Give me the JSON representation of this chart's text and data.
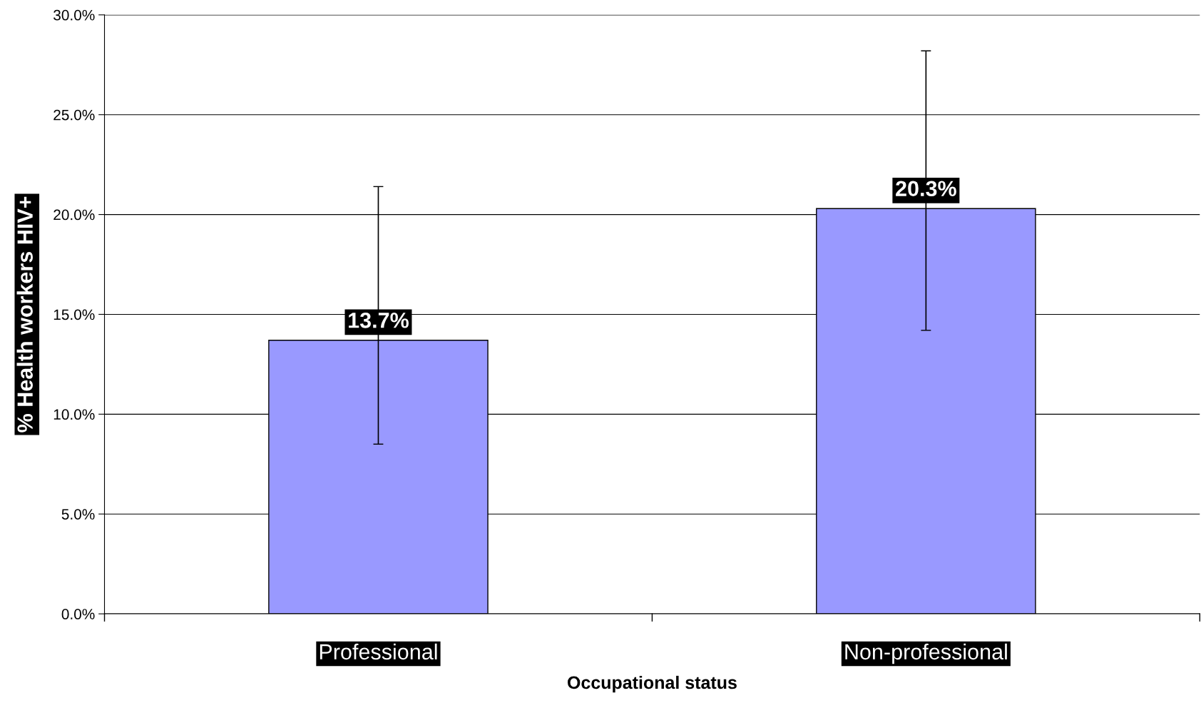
{
  "chart_data": {
    "type": "bar",
    "xlabel": "Occupational status",
    "ylabel": "% Health workers HIV+",
    "categories": [
      "Professional",
      "Non-professional"
    ],
    "values": [
      13.7,
      20.3
    ],
    "errors": [
      [
        8.5,
        21.4
      ],
      [
        14.2,
        28.2
      ]
    ],
    "value_labels": [
      "13.7%",
      "20.3%"
    ],
    "color": "#9999ff",
    "ylim": [
      0,
      30
    ],
    "yticks": [
      {
        "value": 0,
        "label": "0.0%"
      },
      {
        "value": 5,
        "label": "5.0%"
      },
      {
        "value": 10,
        "label": "10.0%"
      },
      {
        "value": 15,
        "label": "15.0%"
      },
      {
        "value": 20,
        "label": "20.0%"
      },
      {
        "value": 25,
        "label": "25.0%"
      },
      {
        "value": 30,
        "label": "30.0%"
      }
    ],
    "grid": "y",
    "legend": false
  }
}
